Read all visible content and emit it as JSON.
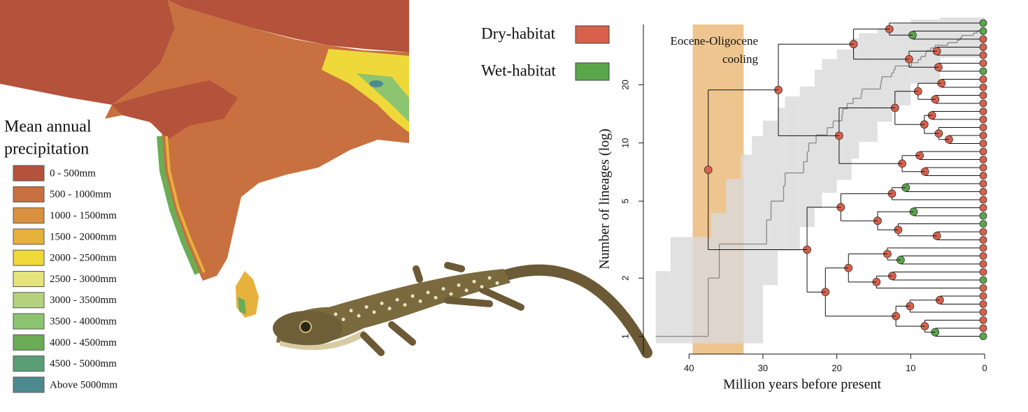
{
  "map_legend": {
    "title_lines": [
      "Mean annual",
      "precipitation"
    ],
    "items": [
      {
        "label": "0 - 500mm",
        "color": "#b5523b"
      },
      {
        "label": "500 - 1000mm",
        "color": "#c8703f"
      },
      {
        "label": "1000 - 1500mm",
        "color": "#d9913f"
      },
      {
        "label": "1500 - 2000mm",
        "color": "#e7b23c"
      },
      {
        "label": "2000 - 2500mm",
        "color": "#efd93a"
      },
      {
        "label": "2500 - 3000mm",
        "color": "#e6e47e"
      },
      {
        "label": "3000 - 3500mm",
        "color": "#b5d37f"
      },
      {
        "label": "3500 - 4000mm",
        "color": "#8cc46f"
      },
      {
        "label": "4000 - 4500mm",
        "color": "#6aad55"
      },
      {
        "label": "4500 - 5000mm",
        "color": "#5a9e77"
      },
      {
        "label": "Above 5000mm",
        "color": "#4d8a8f"
      }
    ]
  },
  "chart_data": {
    "type": "line",
    "xlabel": "Million years before present",
    "ylabel": "Number of lineages (log)",
    "annotation_lines": [
      "Eocene-Oligocene",
      "cooling"
    ],
    "shade": {
      "x": [
        39.5,
        32.6
      ],
      "color": "#efc58f"
    },
    "legend": [
      {
        "name": "Dry-habitat",
        "color": "#d9604a"
      },
      {
        "name": "Wet-habitat",
        "color": "#5aa64a"
      }
    ],
    "xlim": [
      45.7,
      0
    ],
    "xticks": [
      40,
      30,
      20,
      10,
      0
    ],
    "ylim": [
      0.81,
      41
    ],
    "yticks": [
      1,
      2,
      5,
      10,
      20
    ],
    "ylog": true,
    "ci": {
      "color": "#d9dadb",
      "x": [
        44.5,
        42.5,
        37,
        35,
        33,
        31.5,
        30,
        28,
        27,
        25,
        23,
        22,
        20,
        18,
        17,
        14.5,
        12.5,
        10,
        6
      ],
      "lower": [
        1,
        1,
        1,
        1,
        1,
        1,
        2,
        3,
        3,
        4,
        5,
        6,
        7,
        9,
        11,
        14,
        17,
        22,
        30
      ],
      "upper": [
        2,
        3,
        4,
        6,
        8,
        10,
        12,
        14,
        16,
        18,
        22,
        25,
        28,
        32,
        34,
        36,
        38,
        40,
        41
      ]
    },
    "series": [
      {
        "color": "#888888",
        "x": [
          44.5,
          37.4,
          35.9,
          29.5,
          28.9,
          27.2,
          27.0,
          24.5,
          24.0,
          23.8,
          22.8,
          21.3,
          20.5,
          19.3,
          19.2,
          18.6,
          17.8,
          16.7,
          16.6,
          14.1,
          14.0,
          13.9,
          12.6,
          12.3,
          12.1,
          9.9,
          9.0,
          8.6,
          8.0,
          7.9,
          7.3,
          6.7,
          5.0,
          3.7,
          3.3,
          3.1,
          1.5,
          1.0,
          0.5
        ],
        "values": [
          1,
          2,
          3,
          4,
          5,
          6,
          7,
          8,
          9,
          10,
          11,
          12,
          13,
          14,
          15,
          16,
          17,
          18,
          19,
          20,
          21,
          22,
          23,
          24,
          25,
          26,
          27,
          28,
          29,
          30,
          31,
          32,
          33,
          34,
          35,
          36,
          37,
          38,
          39
        ]
      }
    ]
  }
}
